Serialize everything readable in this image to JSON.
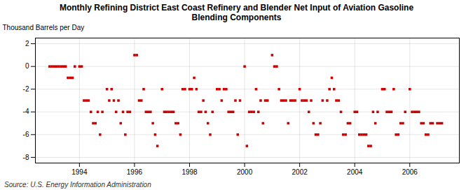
{
  "chart_data": {
    "type": "scatter",
    "title": "Monthly Refining District East Coast Refinery and Blender Net Input of Aviation Gasoline\nBlending Components",
    "ylabel": "Thousand Barrels per Day",
    "source": "Source: U.S. Energy Information Administration",
    "color": "#cc0000",
    "marker": "square",
    "grid": true,
    "xlim": [
      1992.4,
      2007.8
    ],
    "xticks": [
      1994,
      1996,
      1998,
      2000,
      2002,
      2004,
      2006
    ],
    "ylim": [
      -8.5,
      2.5
    ],
    "yticks": [
      -8,
      -6,
      -4,
      -2,
      0,
      2
    ],
    "x": [
      1992.917,
      1993.0,
      1993.083,
      1993.167,
      1993.25,
      1993.333,
      1993.417,
      1993.5,
      1993.583,
      1993.667,
      1993.75,
      1993.833,
      1994.0,
      1994.083,
      1994.167,
      1994.25,
      1994.333,
      1994.417,
      1994.5,
      1994.583,
      1994.667,
      1994.75,
      1994.833,
      1995.0,
      1995.083,
      1995.167,
      1995.25,
      1995.333,
      1995.417,
      1995.5,
      1995.583,
      1995.667,
      1995.75,
      1995.833,
      1996.0,
      1996.083,
      1996.167,
      1996.25,
      1996.333,
      1996.417,
      1996.5,
      1996.583,
      1996.667,
      1996.75,
      1996.833,
      1997.0,
      1997.083,
      1997.167,
      1997.25,
      1997.333,
      1997.417,
      1997.5,
      1997.583,
      1997.667,
      1997.75,
      1997.833,
      1998.0,
      1998.083,
      1998.167,
      1998.25,
      1998.333,
      1998.417,
      1998.5,
      1998.583,
      1998.667,
      1998.75,
      1998.833,
      1999.0,
      1999.083,
      1999.167,
      1999.25,
      1999.333,
      1999.417,
      1999.5,
      1999.583,
      1999.667,
      1999.75,
      1999.833,
      2000.0,
      2000.083,
      2000.167,
      2000.25,
      2000.333,
      2000.417,
      2000.5,
      2000.583,
      2000.667,
      2000.75,
      2000.833,
      2001.0,
      2001.083,
      2001.167,
      2001.25,
      2001.333,
      2001.417,
      2001.5,
      2001.583,
      2001.667,
      2001.75,
      2001.833,
      2002.0,
      2002.083,
      2002.167,
      2002.25,
      2002.333,
      2002.417,
      2002.5,
      2002.583,
      2002.667,
      2002.75,
      2002.833,
      2003.0,
      2003.083,
      2003.167,
      2003.25,
      2003.333,
      2003.417,
      2003.5,
      2003.583,
      2003.667,
      2003.75,
      2003.833,
      2004.0,
      2004.083,
      2004.167,
      2004.25,
      2004.333,
      2004.417,
      2004.5,
      2004.583,
      2004.667,
      2004.75,
      2004.833,
      2005.0,
      2005.083,
      2005.167,
      2005.25,
      2005.333,
      2005.417,
      2005.5,
      2005.583,
      2005.667,
      2005.75,
      2005.833,
      2006.0,
      2006.083,
      2006.167,
      2006.25,
      2006.333,
      2006.417,
      2006.5,
      2006.583,
      2006.667,
      2006.75,
      2006.833,
      2007.0,
      2007.083,
      2007.167
    ],
    "values": [
      0,
      0,
      0,
      0,
      0,
      0,
      0,
      0,
      -1,
      -1,
      -1,
      0,
      0,
      0,
      -3,
      -3,
      -3,
      -4,
      -5,
      -5,
      -4,
      -6,
      -4,
      -2,
      -3,
      -2,
      -3,
      -4,
      -3,
      -5,
      -4,
      -6,
      -4,
      -4,
      1,
      1,
      -3,
      -3,
      -2,
      -4,
      -4,
      -4,
      -5,
      -6,
      -7,
      -2,
      -4,
      -4,
      -4,
      -4,
      -4,
      -5,
      -5,
      -6,
      -2,
      -2,
      -2,
      -2,
      -1,
      -2,
      -4,
      -4,
      -3,
      -4,
      -5,
      -6,
      -4,
      -2,
      -2,
      -3,
      -2,
      -2,
      -4,
      -4,
      -4,
      -3,
      -6,
      -3,
      0,
      -7,
      -4,
      -4,
      -4,
      -2,
      -4,
      -3,
      -5,
      -3,
      -3,
      1,
      0,
      0,
      -2,
      -3,
      -3,
      -3,
      -5,
      -3,
      -3,
      -3,
      -2,
      -3,
      -3,
      -3,
      -4,
      -3,
      -5,
      -6,
      -6,
      -5,
      -3,
      -3,
      -2,
      -1,
      -2,
      -3,
      -3,
      -4,
      -6,
      -6,
      -5,
      -5,
      -4,
      -4,
      -6,
      -6,
      -6,
      -6,
      -7,
      -7,
      -4,
      -5,
      -4,
      -2,
      -2,
      -4,
      -4,
      -4,
      -2,
      -6,
      -6,
      -5,
      -5,
      -4,
      -2,
      -4,
      -4,
      -4,
      -4,
      -5,
      -5,
      -6,
      -6,
      -5,
      -5,
      -5,
      -5,
      -5
    ]
  }
}
